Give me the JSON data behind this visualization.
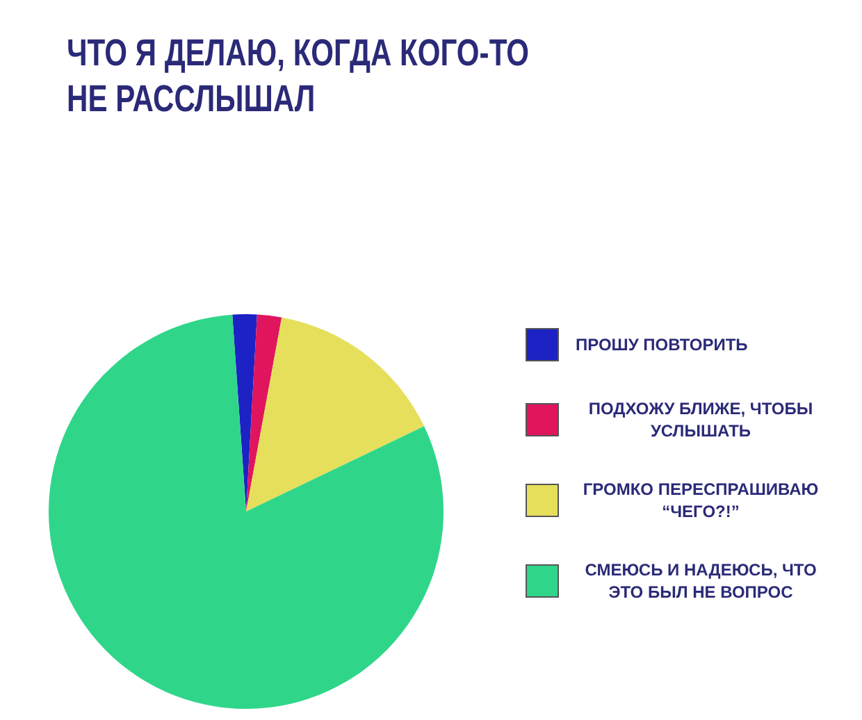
{
  "chart_data": {
    "type": "pie",
    "title": "ЧТО Я ДЕЛАЮ, КОГДА КОГО-ТО НЕ РАССЛЫШАЛ",
    "categories": [
      "ПРОШУ ПОВТОРИТЬ",
      "ПОДХОЖУ БЛИЖЕ, ЧТОБЫ УСЛЫШАТЬ",
      "ГРОМКО ПЕРЕСПРАШИВАЮ “ЧЕГО?!”",
      "СМЕЮСЬ И НАДЕЮСЬ, ЧТО ЭТО БЫЛ НЕ ВОПРОС"
    ],
    "values": [
      2,
      2,
      15,
      81
    ],
    "colors": [
      "#1c22c4",
      "#e0155e",
      "#e6df5c",
      "#2fd68a"
    ],
    "legend": "right"
  }
}
